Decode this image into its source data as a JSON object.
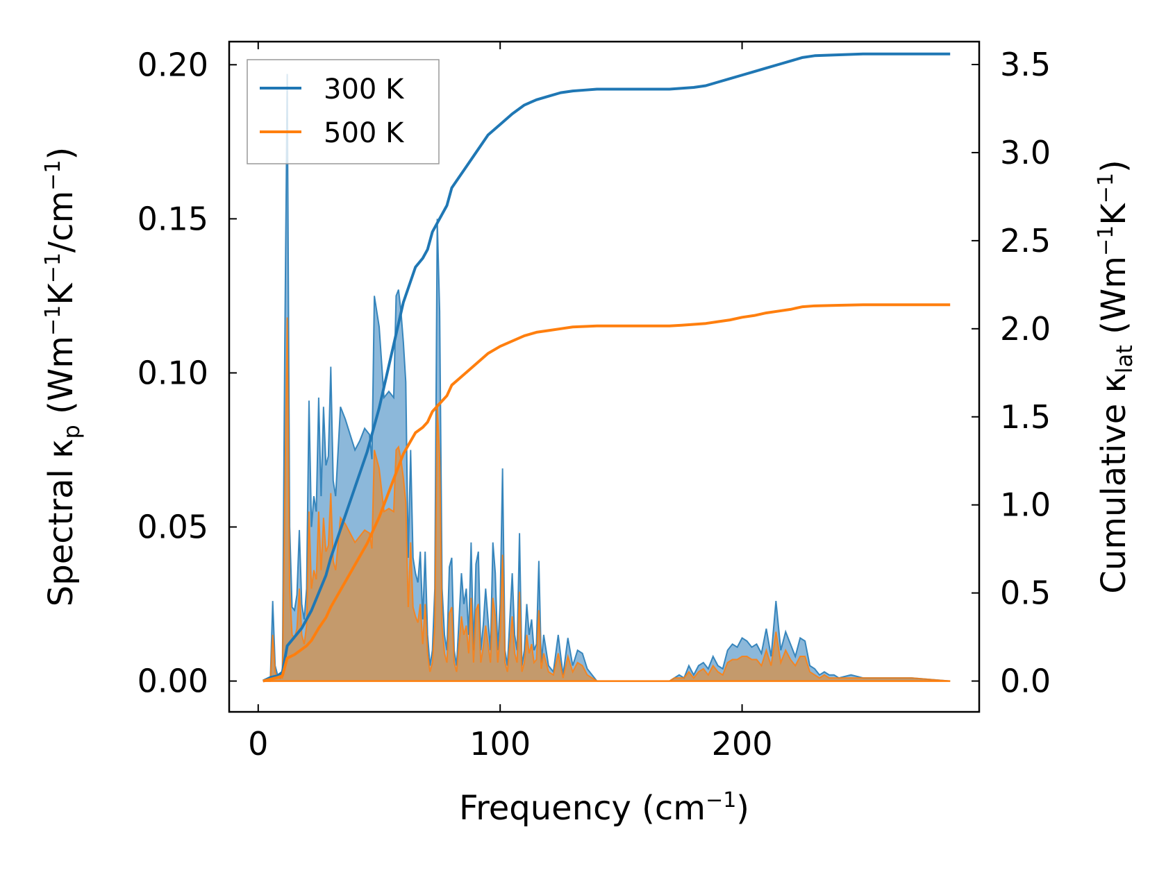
{
  "chart_data": {
    "type": "line",
    "title": "",
    "xlabel": "Frequency (cm",
    "xlabel_sup": "−1",
    "xlabel_end": ")",
    "ylabel_left": {
      "p1": "Spectral κ",
      "sub1": "p",
      "p2": " (Wm",
      "sup1": "−1",
      "p3": "K",
      "sup2": "−1",
      "p4": "/cm",
      "sup3": "−1",
      "p5": ")"
    },
    "ylabel_right": {
      "p1": "Cumulative κ",
      "sub1": "lat",
      "p2": " (Wm",
      "sup1": "−1",
      "p3": "K",
      "sup2": "−1",
      "p4": ")"
    },
    "xlim": [
      -12,
      298
    ],
    "ylim_left": [
      -0.01,
      0.2075
    ],
    "ylim_right": [
      -0.175,
      3.63
    ],
    "x_ticks": [
      0,
      100,
      200
    ],
    "x_tick_labels": [
      "0",
      "100",
      "200"
    ],
    "y_left_ticks": [
      0.0,
      0.05,
      0.1,
      0.15,
      0.2
    ],
    "y_left_tick_labels": [
      "0.00",
      "0.05",
      "0.10",
      "0.15",
      "0.20"
    ],
    "y_right_ticks": [
      0.0,
      0.5,
      1.0,
      1.5,
      2.0,
      2.5,
      3.0,
      3.5
    ],
    "y_right_tick_labels": [
      "0.0",
      "0.5",
      "1.0",
      "1.5",
      "2.0",
      "2.5",
      "3.0",
      "3.5"
    ],
    "legend": {
      "position": "top-left",
      "entries": [
        "300 K",
        "500 K"
      ]
    },
    "colors": {
      "s300": "#1f77b4",
      "s500": "#ff7f0e",
      "fill300": "#7fb0d6",
      "fill500": "#c49a6c"
    },
    "spectral": {
      "x": [
        2,
        5,
        6,
        7,
        8,
        9,
        10,
        11,
        12,
        13,
        14,
        15,
        16,
        17,
        18,
        19,
        20,
        21,
        22,
        23,
        24,
        25,
        26,
        27,
        28,
        29,
        30,
        31,
        32,
        34,
        36,
        38,
        40,
        42,
        44,
        46,
        47,
        48,
        50,
        52,
        54,
        56,
        57,
        58,
        59,
        60,
        61,
        62,
        63,
        64,
        65,
        66,
        67,
        68,
        69,
        70,
        71,
        72,
        73,
        74,
        75,
        76,
        77,
        78,
        79,
        80,
        81,
        82,
        83,
        84,
        85,
        86,
        87,
        88,
        89,
        90,
        91,
        92,
        93,
        94,
        95,
        96,
        97,
        98,
        99,
        100,
        101,
        102,
        103,
        104,
        105,
        106,
        107,
        108,
        109,
        110,
        111,
        112,
        113,
        114,
        115,
        116,
        117,
        118,
        119,
        120,
        122,
        124,
        126,
        128,
        130,
        132,
        134,
        136,
        138,
        140,
        142,
        150,
        160,
        170,
        172,
        174,
        176,
        178,
        180,
        182,
        184,
        186,
        188,
        190,
        192,
        194,
        196,
        198,
        200,
        202,
        204,
        206,
        208,
        210,
        212,
        214,
        216,
        218,
        220,
        222,
        224,
        226,
        228,
        230,
        232,
        234,
        236,
        238,
        240,
        245,
        250,
        255,
        260,
        270,
        286
      ],
      "s300": [
        0,
        0,
        0.026,
        0.005,
        0.002,
        0.001,
        0.002,
        0.11,
        0.197,
        0.05,
        0.024,
        0.023,
        0.028,
        0.049,
        0.025,
        0.02,
        0.03,
        0.091,
        0.05,
        0.06,
        0.055,
        0.092,
        0.06,
        0.089,
        0.07,
        0.073,
        0.102,
        0.065,
        0.06,
        0.089,
        0.085,
        0.08,
        0.075,
        0.078,
        0.082,
        0.08,
        0.072,
        0.125,
        0.115,
        0.092,
        0.094,
        0.092,
        0.125,
        0.127,
        0.12,
        0.11,
        0.097,
        0.04,
        0.075,
        0.04,
        0.035,
        0.032,
        0.042,
        0.02,
        0.042,
        0.015,
        0.005,
        0.01,
        0.03,
        0.15,
        0.12,
        0.03,
        0.015,
        0.01,
        0.037,
        0.04,
        0.01,
        0.005,
        0.02,
        0.035,
        0.025,
        0.03,
        0.015,
        0.045,
        0.01,
        0.038,
        0.042,
        0.01,
        0.018,
        0.03,
        0.02,
        0.01,
        0.045,
        0.035,
        0.01,
        0.025,
        0.069,
        0.01,
        0.005,
        0.02,
        0.035,
        0.015,
        0.01,
        0.048,
        0.005,
        0.01,
        0.025,
        0.015,
        0.02,
        0.01,
        0.012,
        0.039,
        0.006,
        0.015,
        0.01,
        0.005,
        0.003,
        0.015,
        0.002,
        0.014,
        0.005,
        0.01,
        0.009,
        0.004,
        0.002,
        0,
        0,
        0,
        0,
        0,
        0.001,
        0.002,
        0.001,
        0.005,
        0.002,
        0.005,
        0.006,
        0.004,
        0.008,
        0.005,
        0.004,
        0.01,
        0.012,
        0.011,
        0.014,
        0.013,
        0.011,
        0.012,
        0.009,
        0.017,
        0.008,
        0.026,
        0.01,
        0.016,
        0.012,
        0.008,
        0.014,
        0.013,
        0.005,
        0.004,
        0.002,
        0.003,
        0.002,
        0.002,
        0.001,
        0.002,
        0.001,
        0.001,
        0.001,
        0.001,
        0,
        0
      ],
      "s500": [
        0,
        0,
        0.015,
        0.003,
        0.001,
        0.001,
        0.001,
        0.06,
        0.118,
        0.03,
        0.015,
        0.014,
        0.017,
        0.03,
        0.015,
        0.012,
        0.018,
        0.055,
        0.03,
        0.036,
        0.033,
        0.055,
        0.036,
        0.053,
        0.042,
        0.044,
        0.061,
        0.039,
        0.036,
        0.053,
        0.051,
        0.048,
        0.045,
        0.047,
        0.049,
        0.048,
        0.043,
        0.075,
        0.069,
        0.055,
        0.056,
        0.055,
        0.075,
        0.076,
        0.072,
        0.066,
        0.058,
        0.024,
        0.045,
        0.024,
        0.021,
        0.019,
        0.025,
        0.012,
        0.025,
        0.009,
        0.003,
        0.006,
        0.018,
        0.09,
        0.072,
        0.018,
        0.009,
        0.006,
        0.022,
        0.024,
        0.006,
        0.003,
        0.012,
        0.021,
        0.015,
        0.018,
        0.009,
        0.027,
        0.006,
        0.023,
        0.025,
        0.006,
        0.011,
        0.018,
        0.012,
        0.006,
        0.027,
        0.021,
        0.006,
        0.015,
        0.041,
        0.006,
        0.003,
        0.012,
        0.021,
        0.009,
        0.006,
        0.029,
        0.003,
        0.006,
        0.015,
        0.009,
        0.012,
        0.006,
        0.007,
        0.023,
        0.004,
        0.009,
        0.006,
        0.003,
        0.002,
        0.009,
        0.001,
        0.008,
        0.003,
        0.006,
        0.005,
        0.002,
        0.001,
        0,
        0,
        0,
        0,
        0,
        0.001,
        0.001,
        0.001,
        0.003,
        0.001,
        0.003,
        0.004,
        0.002,
        0.005,
        0.003,
        0.002,
        0.006,
        0.007,
        0.007,
        0.008,
        0.008,
        0.007,
        0.007,
        0.005,
        0.01,
        0.005,
        0.016,
        0.006,
        0.01,
        0.007,
        0.005,
        0.008,
        0.008,
        0.003,
        0.002,
        0.001,
        0.002,
        0.001,
        0.001,
        0.001,
        0.001,
        0.001,
        0.001,
        0.001,
        0.001,
        0,
        0
      ]
    },
    "cumulative": {
      "x": [
        2,
        5,
        8,
        10,
        12,
        15,
        18,
        20,
        22,
        25,
        28,
        30,
        35,
        40,
        45,
        50,
        55,
        60,
        65,
        68,
        70,
        72,
        74,
        76,
        78,
        80,
        85,
        90,
        95,
        100,
        105,
        110,
        115,
        120,
        125,
        130,
        135,
        140,
        145,
        150,
        160,
        170,
        175,
        180,
        185,
        190,
        195,
        200,
        205,
        210,
        215,
        220,
        225,
        230,
        240,
        250,
        260,
        270,
        286
      ],
      "s300": [
        0,
        0.02,
        0.03,
        0.05,
        0.2,
        0.25,
        0.3,
        0.35,
        0.4,
        0.5,
        0.6,
        0.7,
        0.9,
        1.1,
        1.3,
        1.55,
        1.85,
        2.15,
        2.35,
        2.4,
        2.45,
        2.55,
        2.6,
        2.65,
        2.7,
        2.8,
        2.9,
        3.0,
        3.1,
        3.16,
        3.22,
        3.27,
        3.3,
        3.32,
        3.34,
        3.35,
        3.355,
        3.36,
        3.36,
        3.36,
        3.36,
        3.36,
        3.365,
        3.37,
        3.38,
        3.4,
        3.42,
        3.44,
        3.46,
        3.48,
        3.5,
        3.52,
        3.54,
        3.55,
        3.555,
        3.56,
        3.56,
        3.56,
        3.56
      ],
      "s500": [
        0,
        0.01,
        0.02,
        0.03,
        0.13,
        0.15,
        0.18,
        0.2,
        0.23,
        0.3,
        0.36,
        0.42,
        0.54,
        0.66,
        0.78,
        0.93,
        1.11,
        1.29,
        1.41,
        1.44,
        1.47,
        1.53,
        1.56,
        1.59,
        1.62,
        1.68,
        1.74,
        1.8,
        1.86,
        1.9,
        1.93,
        1.96,
        1.98,
        1.99,
        2.0,
        2.01,
        2.013,
        2.016,
        2.016,
        2.016,
        2.016,
        2.016,
        2.02,
        2.025,
        2.03,
        2.04,
        2.05,
        2.065,
        2.075,
        2.09,
        2.1,
        2.11,
        2.125,
        2.13,
        2.133,
        2.136,
        2.136,
        2.136,
        2.136
      ]
    }
  }
}
